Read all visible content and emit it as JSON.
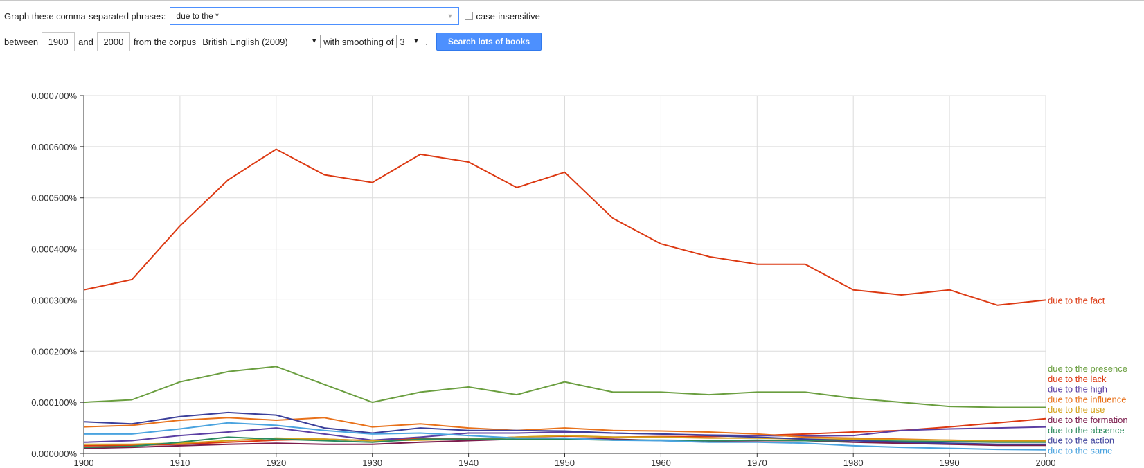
{
  "form": {
    "prompt_label": "Graph these comma-separated phrases:",
    "query_value": "due to the *",
    "case_label": "case-insensitive",
    "between_label": "between",
    "start_year": "1900",
    "and_label": "and",
    "end_year": "2000",
    "corpus_label": "from the corpus",
    "corpus_value": "British English (2009)",
    "smoothing_label": "with smoothing of",
    "smoothing_value": "3",
    "period": ".",
    "search_button": "Search lots of books"
  },
  "chart_data": {
    "type": "line",
    "x": [
      1900,
      1905,
      1910,
      1915,
      1920,
      1925,
      1930,
      1935,
      1940,
      1945,
      1950,
      1955,
      1960,
      1965,
      1970,
      1975,
      1980,
      1985,
      1990,
      1995,
      2000
    ],
    "xticks": [
      "1900",
      "1910",
      "1920",
      "1930",
      "1940",
      "1950",
      "1960",
      "1970",
      "1980",
      "1990",
      "2000"
    ],
    "yticks": [
      "0.000000%",
      "0.000100%",
      "0.000200%",
      "0.000300%",
      "0.000400%",
      "0.000500%",
      "0.000600%",
      "0.000700%"
    ],
    "ylim": [
      0,
      0.0007
    ],
    "grid": true,
    "legend_placement": "right",
    "series": [
      {
        "name": "due to the fact",
        "color": "#dc3912",
        "values": [
          0.00032,
          0.00034,
          0.000445,
          0.000535,
          0.000595,
          0.000545,
          0.00053,
          0.000585,
          0.00057,
          0.00052,
          0.00055,
          0.00046,
          0.00041,
          0.000385,
          0.00037,
          0.00037,
          0.00032,
          0.00031,
          0.00032,
          0.00029,
          0.0003
        ]
      },
      {
        "name": "due to the presence",
        "color": "#6a9e3f",
        "values": [
          0.0001,
          0.000105,
          0.00014,
          0.00016,
          0.00017,
          0.000135,
          0.0001,
          0.00012,
          0.00013,
          0.000115,
          0.00014,
          0.00012,
          0.00012,
          0.000115,
          0.00012,
          0.00012,
          0.000108,
          0.0001,
          9.2e-05,
          9e-05,
          9e-05
        ]
      },
      {
        "name": "due to the lack",
        "color": "#dc3912",
        "values": [
          1.5e-05,
          1.6e-05,
          1.8e-05,
          2.2e-05,
          2.6e-05,
          2.8e-05,
          2.5e-05,
          3e-05,
          2.8e-05,
          3.2e-05,
          3.4e-05,
          3.2e-05,
          3.3e-05,
          3.3e-05,
          3.5e-05,
          3.8e-05,
          4.2e-05,
          4.5e-05,
          5.2e-05,
          6e-05,
          6.8e-05
        ]
      },
      {
        "name": "due to the high",
        "color": "#5b3fa3",
        "values": [
          2.2e-05,
          2.5e-05,
          3.5e-05,
          4.2e-05,
          5e-05,
          3.8e-05,
          2.6e-05,
          3.2e-05,
          4e-05,
          4e-05,
          4.2e-05,
          4e-05,
          3.8e-05,
          3.6e-05,
          3.5e-05,
          3.4e-05,
          3.5e-05,
          4.5e-05,
          4.8e-05,
          5e-05,
          5.2e-05
        ]
      },
      {
        "name": "due to the influence",
        "color": "#e8711a",
        "values": [
          5.2e-05,
          5.5e-05,
          6.5e-05,
          7e-05,
          6.5e-05,
          7e-05,
          5.2e-05,
          5.8e-05,
          5e-05,
          4.5e-05,
          5e-05,
          4.5e-05,
          4.4e-05,
          4.2e-05,
          3.8e-05,
          3.2e-05,
          3e-05,
          2.8e-05,
          2.6e-05,
          2.5e-05,
          2.5e-05
        ]
      },
      {
        "name": "due to the use",
        "color": "#d4a11a",
        "values": [
          1.8e-05,
          1.8e-05,
          2e-05,
          2.5e-05,
          3e-05,
          2.8e-05,
          2.5e-05,
          2.6e-05,
          2.8e-05,
          3.2e-05,
          3.5e-05,
          3.2e-05,
          3.2e-05,
          3e-05,
          3e-05,
          2.8e-05,
          2.8e-05,
          2.7e-05,
          2.6e-05,
          2.4e-05,
          2.4e-05
        ]
      },
      {
        "name": "due to the formation",
        "color": "#7b1c4c",
        "values": [
          1e-05,
          1.2e-05,
          1.5e-05,
          1.8e-05,
          2e-05,
          1.8e-05,
          1.8e-05,
          2.2e-05,
          2.5e-05,
          2.8e-05,
          3e-05,
          2.8e-05,
          2.5e-05,
          2.4e-05,
          2.5e-05,
          2.5e-05,
          2.2e-05,
          2e-05,
          1.8e-05,
          1.6e-05,
          1.6e-05
        ]
      },
      {
        "name": "due to the absence",
        "color": "#2a8a5c",
        "values": [
          1.2e-05,
          1.4e-05,
          2.2e-05,
          3.2e-05,
          2.8e-05,
          2.5e-05,
          2.2e-05,
          2.8e-05,
          2.8e-05,
          2.8e-05,
          2.8e-05,
          2.6e-05,
          2.6e-05,
          2.5e-05,
          2.6e-05,
          2.5e-05,
          2.5e-05,
          2.4e-05,
          2.3e-05,
          2.2e-05,
          2.2e-05
        ]
      },
      {
        "name": "due to the action",
        "color": "#3b3f9a",
        "values": [
          6.2e-05,
          5.8e-05,
          7.2e-05,
          8e-05,
          7.5e-05,
          5e-05,
          4e-05,
          5e-05,
          4.5e-05,
          4.5e-05,
          4.4e-05,
          4e-05,
          3.8e-05,
          3.5e-05,
          3.2e-05,
          2.8e-05,
          2.5e-05,
          2.2e-05,
          2e-05,
          1.8e-05,
          1.8e-05
        ]
      },
      {
        "name": "due to the same",
        "color": "#4aa3df",
        "values": [
          3.8e-05,
          3.8e-05,
          4.8e-05,
          6e-05,
          5.5e-05,
          4.5e-05,
          3.8e-05,
          4e-05,
          3.5e-05,
          3e-05,
          3e-05,
          2.6e-05,
          2.5e-05,
          2.2e-05,
          2.2e-05,
          2e-05,
          1.5e-05,
          1.2e-05,
          1e-05,
          8e-06,
          7e-06
        ]
      }
    ]
  }
}
